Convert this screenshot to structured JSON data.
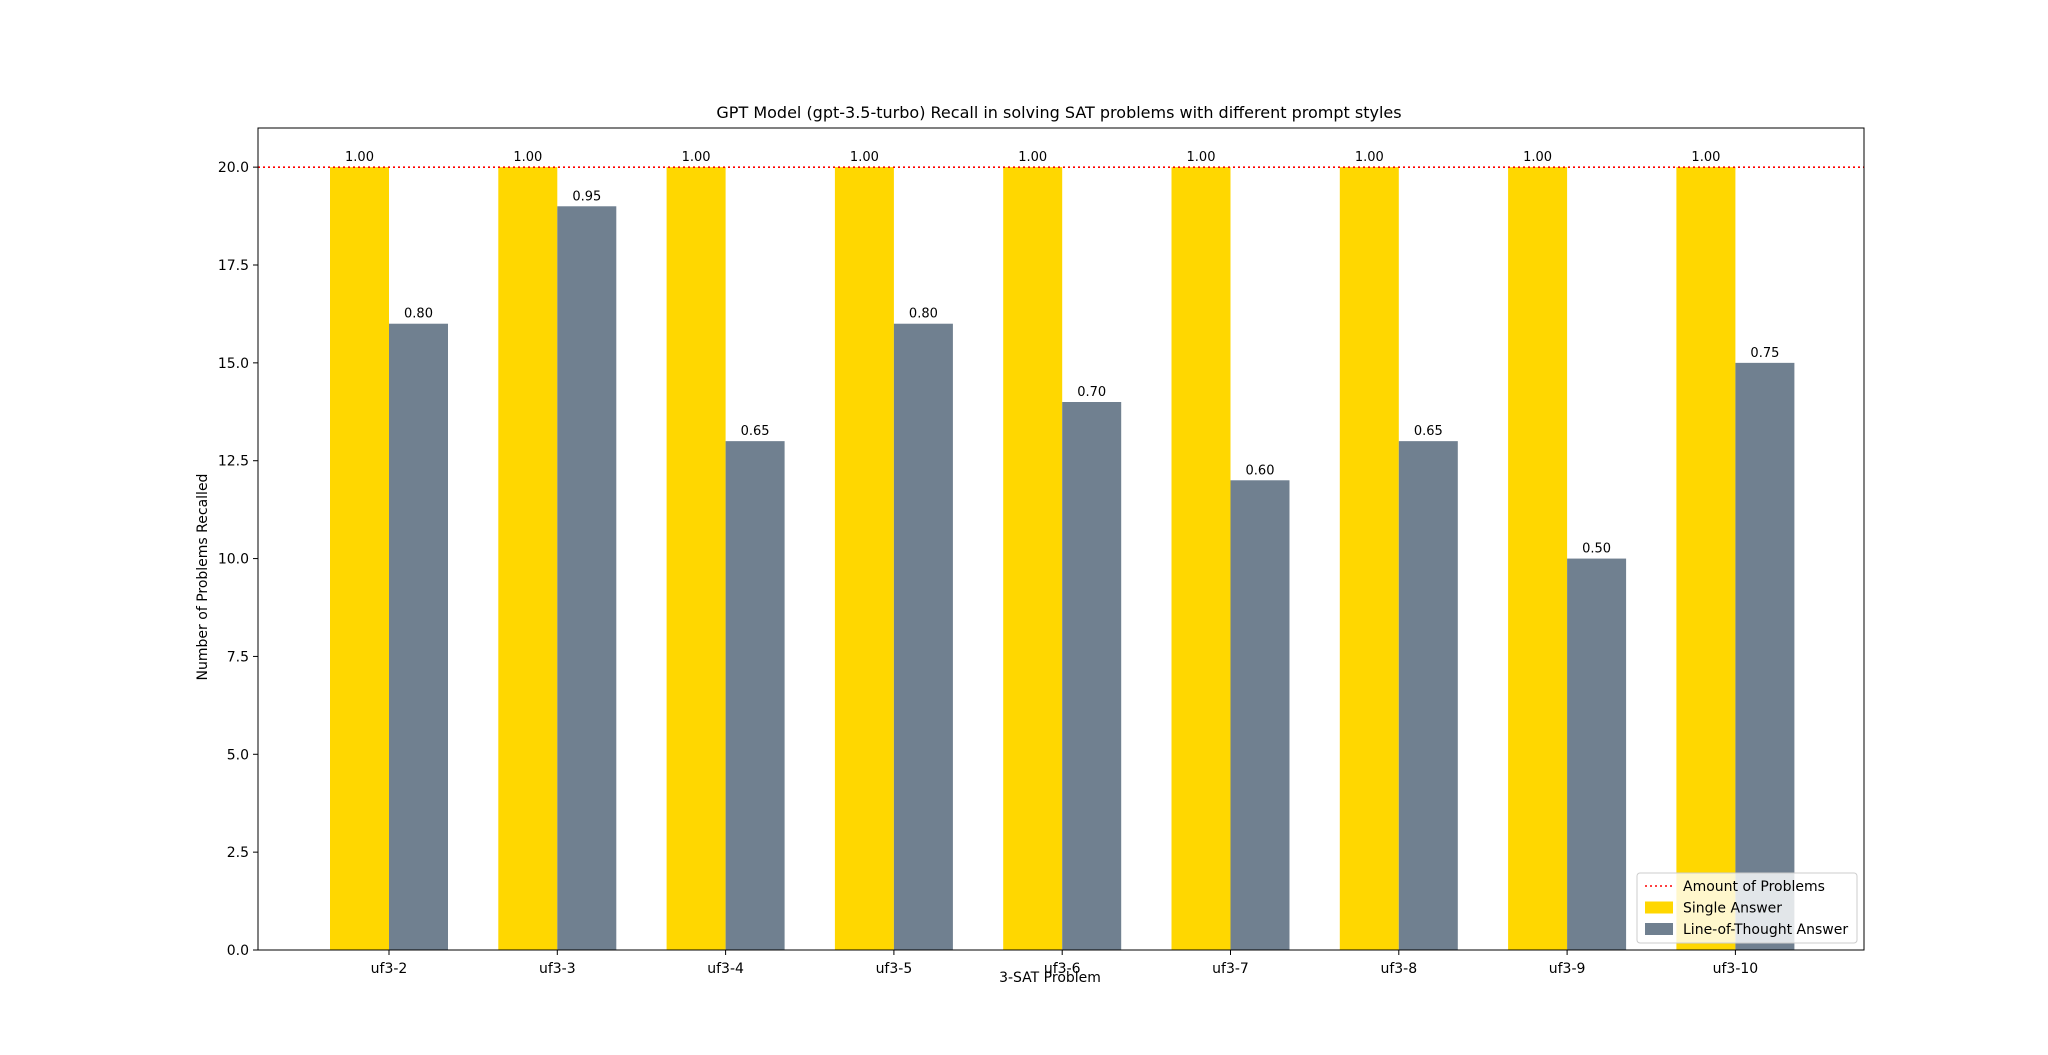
{
  "chart_data": {
    "type": "bar",
    "title": "GPT Model (gpt-3.5-turbo) Recall in solving SAT problems with different prompt styles",
    "xlabel": "3-SAT Problem",
    "ylabel": "Number of Problems Recalled",
    "categories": [
      "uf3-2",
      "uf3-3",
      "uf3-4",
      "uf3-5",
      "uf3-6",
      "uf3-7",
      "uf3-8",
      "uf3-9",
      "uf3-10"
    ],
    "series": [
      {
        "name": "Single Answer",
        "values": [
          20,
          20,
          20,
          20,
          20,
          20,
          20,
          20,
          20
        ],
        "labels": [
          "1.00",
          "1.00",
          "1.00",
          "1.00",
          "1.00",
          "1.00",
          "1.00",
          "1.00",
          "1.00"
        ],
        "color": "#ffd700"
      },
      {
        "name": "Line-of-Thought Answer",
        "values": [
          16,
          19,
          13,
          16,
          14,
          12,
          13,
          10,
          15
        ],
        "labels": [
          "0.80",
          "0.95",
          "0.65",
          "0.80",
          "0.70",
          "0.60",
          "0.65",
          "0.50",
          "0.75"
        ],
        "color": "#708090"
      }
    ],
    "reference_line": {
      "name": "Amount of Problems",
      "value": 20,
      "color": "#ff0000",
      "style": "dotted"
    },
    "yticks": [
      "0.0",
      "2.5",
      "5.0",
      "7.5",
      "10.0",
      "12.5",
      "15.0",
      "17.5",
      "20.0"
    ],
    "ylim": [
      0,
      21
    ],
    "grid": false,
    "legend_position": "lower-right"
  }
}
